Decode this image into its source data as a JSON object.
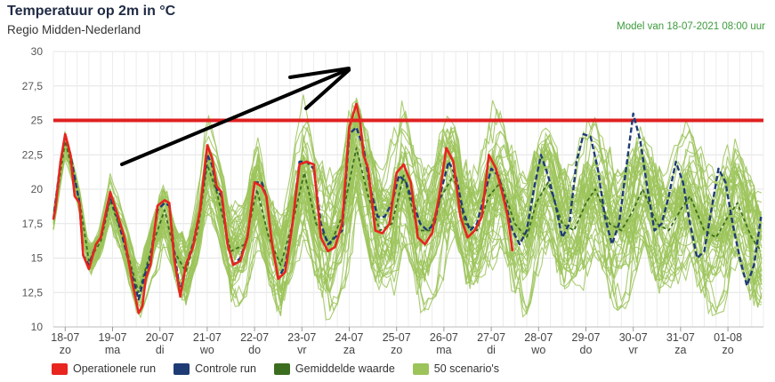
{
  "header": {
    "title": "Temperatuur op 2m in °C",
    "subtitle": "Regio Midden-Nederland",
    "model": "Model van 18-07-2021 08:00 uur"
  },
  "colors": {
    "operational": "#e8251f",
    "control": "#1f3b75",
    "mean": "#3b6d1f",
    "scenarios": "#9cc45a",
    "threshold": "#e02020",
    "annotation": "#000000"
  },
  "legend": [
    {
      "label": "Operationele run",
      "color": "#e8251f"
    },
    {
      "label": "Controle run",
      "color": "#1f3b75"
    },
    {
      "label": "Gemiddelde waarde",
      "color": "#3b6d1f"
    },
    {
      "label": "50 scenario's",
      "color": "#9cc45a"
    }
  ],
  "chart_data": {
    "type": "line",
    "ylim": [
      10,
      30
    ],
    "yticks": [
      "10",
      "12,5",
      "15",
      "17,5",
      "20",
      "22,5",
      "25",
      "27,5",
      "30"
    ],
    "yticks_values": [
      10,
      12.5,
      15,
      17.5,
      20,
      22.5,
      25,
      27.5,
      30
    ],
    "x_unit": "days since 18-07 00:00",
    "xlim": [
      0,
      15
    ],
    "day_labels": [
      {
        "date": "18-07",
        "day": "zo"
      },
      {
        "date": "19-07",
        "day": "ma"
      },
      {
        "date": "20-07",
        "day": "di"
      },
      {
        "date": "21-07",
        "day": "wo"
      },
      {
        "date": "22-07",
        "day": "do"
      },
      {
        "date": "23-07",
        "day": "vr"
      },
      {
        "date": "24-07",
        "day": "za"
      },
      {
        "date": "25-07",
        "day": "zo"
      },
      {
        "date": "26-07",
        "day": "ma"
      },
      {
        "date": "27-07",
        "day": "di"
      },
      {
        "date": "28-07",
        "day": "wo"
      },
      {
        "date": "29-07",
        "day": "do"
      },
      {
        "date": "30-07",
        "day": "vr"
      },
      {
        "date": "31-07",
        "day": "za"
      },
      {
        "date": "01-08",
        "day": "zo"
      }
    ],
    "threshold": {
      "value": 25
    },
    "series": [
      {
        "name": "Operationele run",
        "x": [
          0,
          0.04,
          0.15,
          0.25,
          0.36,
          0.45,
          0.55,
          0.63,
          0.75,
          0.9,
          1.0,
          1.2,
          1.35,
          1.5,
          1.68,
          1.8,
          1.88,
          1.95,
          2.05,
          2.2,
          2.35,
          2.45,
          2.55,
          2.68,
          2.8,
          2.95,
          3.1,
          3.25,
          3.35,
          3.45,
          3.55,
          3.68,
          3.8,
          3.95,
          4.1,
          4.25,
          4.4,
          4.5,
          4.62,
          4.75,
          4.9,
          5.05,
          5.2,
          5.35,
          5.5,
          5.65,
          5.8,
          5.95,
          6.1,
          6.25,
          6.4,
          6.48,
          6.55,
          6.65,
          6.8,
          6.95,
          7.1,
          7.25,
          7.4,
          7.55,
          7.7,
          7.85,
          8.0,
          8.15,
          8.3,
          8.45,
          8.6,
          8.75,
          8.9,
          9.05,
          9.2,
          9.35,
          9.5,
          9.6,
          9.7
        ],
        "y": [
          17.8,
          18.5,
          22.0,
          24.0,
          22.5,
          19.5,
          19.0,
          15.2,
          14.2,
          16.0,
          16.5,
          19.8,
          18.2,
          16.5,
          13.0,
          11.0,
          11.5,
          13.5,
          14.5,
          18.8,
          19.2,
          19.0,
          15.0,
          12.2,
          14.5,
          15.8,
          18.5,
          23.2,
          22.3,
          20.2,
          19.8,
          16.0,
          14.5,
          14.8,
          16.5,
          20.5,
          20.2,
          19.5,
          16.0,
          13.5,
          14.0,
          17.5,
          21.8,
          22.0,
          21.8,
          16.5,
          15.5,
          15.8,
          17.5,
          24.5,
          26.2,
          25.0,
          22.5,
          21.5,
          17.0,
          16.8,
          17.5,
          21.2,
          21.8,
          20.5,
          16.5,
          16.0,
          16.8,
          19.5,
          23.0,
          22.0,
          18.0,
          16.5,
          17.0,
          18.0,
          22.5,
          21.5,
          19.5,
          18.0,
          15.5
        ]
      },
      {
        "name": "Controle run",
        "x": [
          0,
          0.15,
          0.25,
          0.36,
          0.55,
          0.63,
          0.75,
          0.9,
          1.0,
          1.2,
          1.35,
          1.5,
          1.68,
          1.8,
          1.95,
          2.05,
          2.2,
          2.35,
          2.45,
          2.55,
          2.68,
          2.8,
          2.95,
          3.1,
          3.25,
          3.35,
          3.45,
          3.55,
          3.68,
          3.8,
          3.95,
          4.1,
          4.25,
          4.4,
          4.5,
          4.62,
          4.75,
          4.9,
          5.05,
          5.2,
          5.35,
          5.5,
          5.65,
          5.8,
          5.95,
          6.1,
          6.25,
          6.4,
          6.55,
          6.7,
          6.85,
          7.0,
          7.15,
          7.3,
          7.45,
          7.6,
          7.75,
          7.9,
          8.05,
          8.2,
          8.35,
          8.5,
          8.65,
          8.8,
          8.95,
          9.1,
          9.25,
          9.4,
          9.55,
          9.7,
          9.85,
          10.0,
          10.15,
          10.3,
          10.45,
          10.6,
          10.75,
          10.9,
          11.05,
          11.2,
          11.35,
          11.5,
          11.65,
          11.8,
          11.95,
          12.1,
          12.25,
          12.4,
          12.55,
          12.7,
          12.85,
          13.0,
          13.15,
          13.3,
          13.45,
          13.6,
          13.75,
          13.9,
          14.05,
          14.2,
          14.35,
          14.5,
          14.65,
          14.8,
          14.95
        ],
        "y": [
          17.8,
          22.0,
          24.0,
          22.5,
          19.0,
          15.2,
          14.5,
          16.0,
          16.5,
          19.5,
          18.0,
          16.0,
          13.5,
          12.0,
          14.0,
          15.0,
          18.5,
          19.0,
          18.8,
          15.5,
          12.5,
          14.5,
          16.0,
          18.5,
          22.5,
          21.8,
          20.0,
          19.5,
          16.0,
          14.5,
          15.0,
          16.5,
          20.5,
          20.5,
          19.5,
          16.0,
          13.5,
          14.5,
          17.5,
          22.0,
          22.0,
          21.5,
          17.5,
          16.0,
          16.5,
          17.0,
          24.0,
          24.5,
          23.0,
          20.0,
          18.0,
          18.0,
          19.0,
          21.0,
          20.5,
          19.0,
          17.5,
          17.0,
          17.5,
          20.0,
          22.0,
          21.0,
          18.5,
          17.0,
          17.5,
          19.5,
          21.5,
          21.0,
          19.0,
          17.0,
          16.0,
          17.0,
          20.0,
          22.5,
          21.0,
          19.0,
          16.5,
          17.5,
          22.0,
          24.0,
          23.8,
          21.5,
          18.0,
          16.0,
          17.5,
          21.5,
          25.5,
          23.5,
          20.0,
          17.0,
          17.5,
          19.5,
          22.0,
          20.5,
          17.5,
          15.0,
          15.5,
          18.5,
          21.5,
          20.5,
          17.5,
          15.0,
          13.0,
          14.5,
          18.0
        ]
      },
      {
        "name": "Gemiddelde waarde",
        "x": [
          0,
          0.25,
          0.55,
          0.75,
          1.0,
          1.2,
          1.5,
          1.8,
          2.1,
          2.35,
          2.55,
          2.8,
          3.05,
          3.25,
          3.45,
          3.75,
          4.05,
          4.3,
          4.55,
          4.8,
          5.05,
          5.3,
          5.55,
          5.85,
          6.1,
          6.4,
          6.65,
          6.9,
          7.15,
          7.4,
          7.7,
          7.95,
          8.2,
          8.45,
          8.7,
          8.95,
          9.2,
          9.45,
          9.75,
          10.0,
          10.2,
          10.45,
          10.75,
          11.0,
          11.25,
          11.45,
          11.75,
          12.0,
          12.25,
          12.45,
          12.75,
          13.0,
          13.25,
          13.45,
          13.75,
          14.0,
          14.25,
          14.45,
          14.75,
          14.95
        ],
        "y": [
          17.8,
          23.5,
          19.2,
          14.8,
          16.2,
          19.2,
          16.2,
          12.5,
          16.0,
          18.5,
          15.5,
          14.0,
          17.0,
          21.8,
          19.8,
          15.5,
          16.0,
          20.0,
          16.5,
          14.5,
          17.5,
          21.2,
          17.5,
          16.0,
          18.0,
          23.0,
          19.5,
          17.0,
          17.5,
          21.0,
          17.0,
          17.0,
          19.5,
          21.0,
          17.5,
          17.0,
          19.5,
          20.5,
          17.5,
          16.5,
          19.0,
          20.5,
          17.5,
          17.0,
          19.0,
          20.0,
          17.5,
          17.0,
          18.5,
          20.0,
          17.5,
          17.0,
          18.5,
          19.5,
          17.0,
          16.5,
          18.0,
          19.0,
          16.5,
          15.5
        ]
      }
    ],
    "scenario_count": 50
  }
}
